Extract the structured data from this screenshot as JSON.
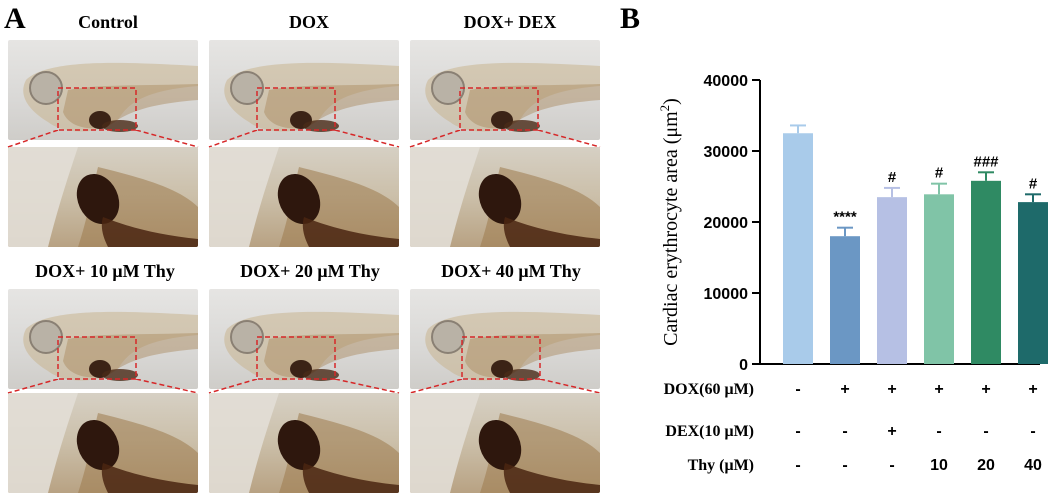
{
  "panel_a": {
    "letter": "A",
    "titles": [
      "Control",
      "DOX",
      "DOX+ DEX",
      "DOX+ 10 μM Thy",
      "DOX+ 20 μM Thy",
      "DOX+ 40 μM Thy"
    ]
  },
  "panel_b": {
    "letter": "B"
  },
  "colors": {
    "dashed_box": "#d62728",
    "bars": [
      "#a9cbea",
      "#6b97c4",
      "#b6c0e4",
      "#80c4a7",
      "#2f8a63",
      "#1e6a6a"
    ]
  },
  "chart_data": {
    "type": "bar",
    "ylabel_prefix": "Cardiac erythrocyte area (μm",
    "ylabel_sup": "2",
    "ylabel_suffix": ")",
    "ylim": [
      0,
      40000
    ],
    "yticks": [
      "0",
      "10000",
      "20000",
      "30000",
      "40000"
    ],
    "values": [
      32500,
      18000,
      23500,
      23900,
      25800,
      22800
    ],
    "errors": [
      1100,
      1200,
      1300,
      1500,
      1200,
      1100
    ],
    "significance": [
      "",
      "****",
      "#",
      "#",
      "###",
      "#"
    ],
    "grid": false,
    "groups": [
      {
        "label": "DOX(60 μM)",
        "values": [
          "-",
          "+",
          "+",
          "+",
          "+",
          "+"
        ]
      },
      {
        "label": "DEX(10 μM)",
        "values": [
          "-",
          "-",
          "+",
          "-",
          "-",
          "-"
        ]
      },
      {
        "label": "Thy (μM)",
        "values": [
          "-",
          "-",
          "-",
          "10",
          "20",
          "40"
        ]
      }
    ]
  }
}
